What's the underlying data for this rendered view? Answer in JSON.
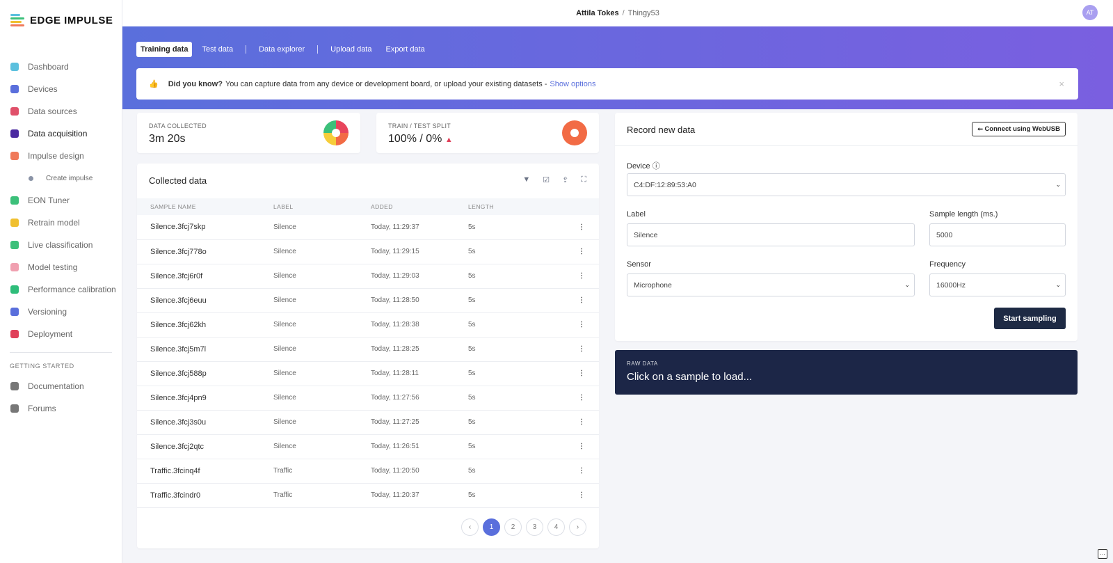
{
  "app": {
    "brand": "EDGE IMPULSE",
    "user": "Attila Tokes",
    "project": "Thingy53",
    "avatar_initials": "AT"
  },
  "sidebar": {
    "items": [
      {
        "label": "Dashboard",
        "icon": "monitor-icon",
        "color": "#5bc0de"
      },
      {
        "label": "Devices",
        "icon": "chip-icon",
        "color": "#5a6fdc"
      },
      {
        "label": "Data sources",
        "icon": "wand-icon",
        "color": "#e0506a"
      },
      {
        "label": "Data acquisition",
        "icon": "database-icon",
        "color": "#4b2aa0",
        "active": true
      },
      {
        "label": "Impulse design",
        "icon": "pulse-icon",
        "color": "#f07a5a"
      },
      {
        "label": "Create impulse",
        "icon": "dot-icon",
        "sub": true
      },
      {
        "label": "EON Tuner",
        "icon": "compass-icon",
        "color": "#3cc07a"
      },
      {
        "label": "Retrain model",
        "icon": "shuffle-icon",
        "color": "#f0c030"
      },
      {
        "label": "Live classification",
        "icon": "network-icon",
        "color": "#3cc07a"
      },
      {
        "label": "Model testing",
        "icon": "clipboard-icon",
        "color": "#f0a0b0"
      },
      {
        "label": "Performance calibration",
        "icon": "chart-icon",
        "color": "#2ebd7a"
      },
      {
        "label": "Versioning",
        "icon": "branch-icon",
        "color": "#5a6fdc"
      },
      {
        "label": "Deployment",
        "icon": "box-icon",
        "color": "#e0405a"
      }
    ],
    "section": "GETTING STARTED",
    "extra": [
      {
        "label": "Documentation",
        "icon": "rocket-icon"
      },
      {
        "label": "Forums",
        "icon": "chat-icon"
      }
    ]
  },
  "tabs": [
    "Training data",
    "Test data",
    "Data explorer",
    "Upload data",
    "Export data"
  ],
  "banner": {
    "bold": "Did you know?",
    "text": "You can capture data from any device or development board, or upload your existing datasets -",
    "link": "Show options",
    "close": "×"
  },
  "stats": {
    "collected_label": "DATA COLLECTED",
    "collected_value": "3m 20s",
    "split_label": "TRAIN / TEST SPLIT",
    "split_value": "100% / 0%",
    "train_percent": 100
  },
  "collected": {
    "title": "Collected data",
    "columns": [
      "SAMPLE NAME",
      "LABEL",
      "ADDED",
      "LENGTH"
    ],
    "rows": [
      [
        "Silence.3fcj7skp",
        "Silence",
        "Today, 11:29:37",
        "5s"
      ],
      [
        "Silence.3fcj778o",
        "Silence",
        "Today, 11:29:15",
        "5s"
      ],
      [
        "Silence.3fcj6r0f",
        "Silence",
        "Today, 11:29:03",
        "5s"
      ],
      [
        "Silence.3fcj6euu",
        "Silence",
        "Today, 11:28:50",
        "5s"
      ],
      [
        "Silence.3fcj62kh",
        "Silence",
        "Today, 11:28:38",
        "5s"
      ],
      [
        "Silence.3fcj5m7l",
        "Silence",
        "Today, 11:28:25",
        "5s"
      ],
      [
        "Silence.3fcj588p",
        "Silence",
        "Today, 11:28:11",
        "5s"
      ],
      [
        "Silence.3fcj4pn9",
        "Silence",
        "Today, 11:27:56",
        "5s"
      ],
      [
        "Silence.3fcj3s0u",
        "Silence",
        "Today, 11:27:25",
        "5s"
      ],
      [
        "Silence.3fcj2qtc",
        "Silence",
        "Today, 11:26:51",
        "5s"
      ],
      [
        "Traffic.3fcinq4f",
        "Traffic",
        "Today, 11:20:50",
        "5s"
      ],
      [
        "Traffic.3fcindr0",
        "Traffic",
        "Today, 11:20:37",
        "5s"
      ]
    ],
    "pages": [
      "‹",
      "1",
      "2",
      "3",
      "4",
      "›"
    ],
    "current_page": "1"
  },
  "record": {
    "title": "Record new data",
    "webusb": "Connect using WebUSB",
    "device_label": "Device",
    "device": "C4:DF:12:89:53:A0",
    "label_label": "Label",
    "label": "Silence",
    "length_label": "Sample length (ms.)",
    "length": "5000",
    "sensor_label": "Sensor",
    "sensor": "Microphone",
    "freq_label": "Frequency",
    "freq": "16000Hz",
    "start": "Start sampling"
  },
  "raw": {
    "label": "RAW DATA",
    "text": "Click on a sample to load..."
  }
}
